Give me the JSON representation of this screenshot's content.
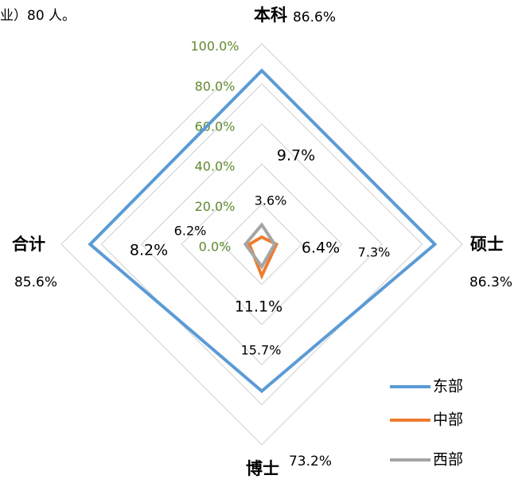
{
  "chart_data": {
    "type": "radar",
    "annotation": "业）80 人。",
    "categories": [
      "本科",
      "硕士",
      "博士",
      "合计"
    ],
    "series": [
      {
        "name": "东部",
        "color": "#5b9bd5",
        "values": [
          86.6,
          86.3,
          73.2,
          85.6
        ],
        "value_labels": [
          "86.6%",
          "86.3%",
          "73.2%",
          "85.6%"
        ]
      },
      {
        "name": "中部",
        "color": "#ed7d31",
        "values": [
          3.6,
          7.3,
          15.7,
          6.2
        ],
        "value_labels": [
          "3.6%",
          "7.3%",
          "15.7%",
          "6.2%"
        ]
      },
      {
        "name": "西部",
        "color": "#a5a5a5",
        "values": [
          9.7,
          6.4,
          11.1,
          8.2
        ],
        "value_labels": [
          "9.7%",
          "6.4%",
          "11.1%",
          "8.2%"
        ]
      }
    ],
    "ylim": [
      0,
      100
    ],
    "yticks": [
      {
        "value": 0,
        "label": "0.0%"
      },
      {
        "value": 20,
        "label": "20.0%"
      },
      {
        "value": 40,
        "label": "40.0%"
      },
      {
        "value": 60,
        "label": "60.0%"
      },
      {
        "value": 80,
        "label": "80.0%"
      },
      {
        "value": 100,
        "label": "100.0%"
      }
    ],
    "grid": true,
    "legend": "lower right"
  }
}
